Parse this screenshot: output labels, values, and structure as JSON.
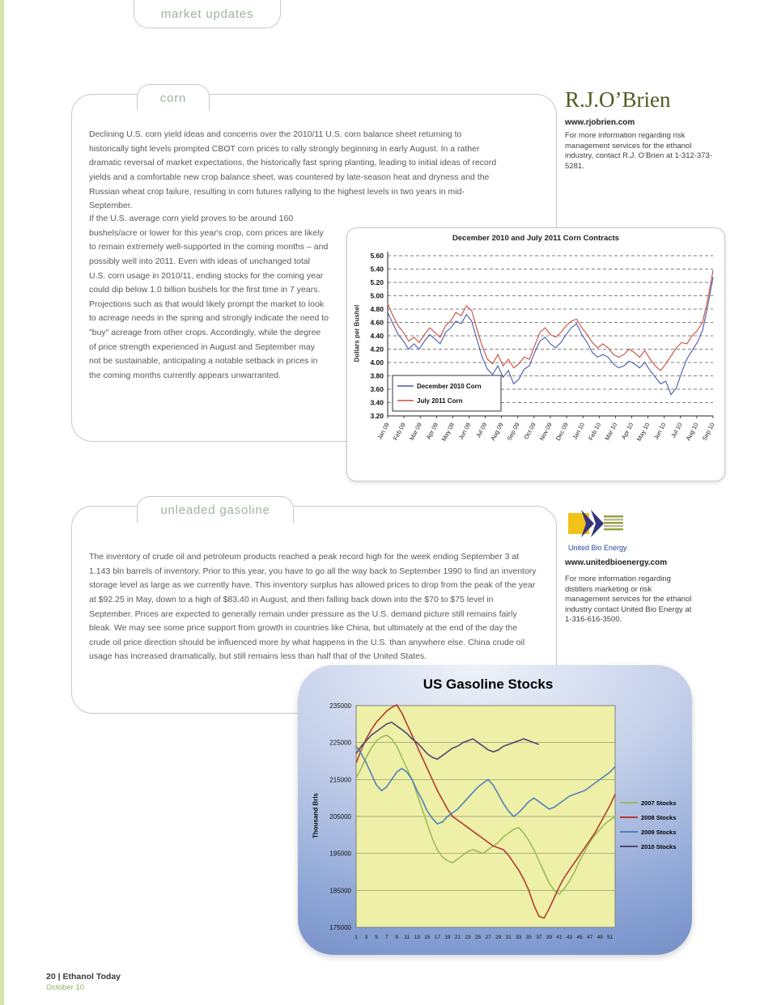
{
  "page": {
    "section_tab": "market updates",
    "footer": {
      "page_info": "20 | Ethanol Today",
      "issue": "October 10"
    }
  },
  "corn": {
    "tab": "corn",
    "para1": "Declining U.S. corn yield ideas and concerns over the 2010/11 U.S. corn balance sheet returning to historically tight levels prompted CBOT corn prices to rally strongly beginning in early August. In a rather dramatic reversal of market expectations, the historically fast spring planting, leading to initial ideas of record yields and a comfortable new crop balance sheet, was countered by late-season heat and dryness and the Russian wheat crop failure, resulting in corn futures rallying to the highest levels in two years in mid-September.",
    "para2": "If the U.S. average corn yield proves to be around 160 bushels/acre or lower for this year's crop, corn prices are likely to remain extremely well-supported in the coming months – and possibly well into 2011. Even with ideas of unchanged total U.S. corn usage in 2010/11, ending stocks for the coming year could dip below 1.0 billion bushels for the first time in 7 years. Projections such as that would likely prompt the market to look to acreage needs in the spring and strongly indicate the need to \"buy\" acreage from other crops. Accordingly, while the degree of price strength experienced in August and September may not be sustainable, anticipating a notable setback in prices in the coming months currently appears unwarranted."
  },
  "rjobrien": {
    "logo": "R.J.O’Brien",
    "website": "www.rjobrien.com",
    "blurb": "For more information regarding risk management services for the ethanol industry, contact R.J. O’Brien at 1-312-373-5281."
  },
  "gasoline": {
    "tab": "unleaded gasoline",
    "para": "The inventory of crude oil and petroleum products reached a peak record high for the week ending September 3 at 1.143 bln barrels of inventory. Prior to this year, you have to go all the way back to September 1990 to find an inventory storage level as large as we currently have. This inventory surplus has allowed prices to drop from the peak of the year at $92.25 in May, down to a high of $83.40 in August, and then falling back down into the $70 to $75 level in September. Prices are expected to generally remain under pressure as the U.S. demand picture still remains fairly bleak. We may see some price support from growth in countries like China, but ultimately at the end of the day the crude oil price direction should be influenced more by what happens in the U.S. than anywhere else. China crude oil usage has increased dramatically, but still remains less than half that of the United States."
  },
  "ube": {
    "logo_text": "United Bio Energy",
    "website": "www.unitedbioenergy.com",
    "blurb": "For more information regarding distillers marketing or risk management services for the ethanol industry contact United Bio Energy at 1-316-616-3500."
  },
  "colors": {
    "tab_text": "#9fb3a0",
    "rjo_logo_green": "#4e5c20",
    "footer_issue_green": "#8fae62",
    "ube_blue": "#27489e"
  },
  "chart_data": [
    {
      "id": "corn",
      "type": "line",
      "title": "December 2010 and July 2011 Corn Contracts",
      "ylabel": "Dollars per Bushel",
      "ylim": [
        3.2,
        5.6
      ],
      "ytick_step": 0.2,
      "grid": "dashed-horizontal",
      "legend_position": "bottom-left-inside",
      "x_categories": [
        "Jan 09",
        "Feb 09",
        "Mar 09",
        "Apr 09",
        "May 09",
        "Jun 09",
        "Jul 09",
        "Aug 09",
        "Sep 09",
        "Oct 09",
        "Nov 09",
        "Dec 09",
        "Jan 10",
        "Feb 10",
        "Mar 10",
        "Apr 10",
        "May 10",
        "Jun 10",
        "Jul 10",
        "Aug 10",
        "Sep 10"
      ],
      "series": [
        {
          "name": "December 2010 Corn",
          "color": "#4959ae",
          "values": [
            4.75,
            4.58,
            4.42,
            4.32,
            4.2,
            4.28,
            4.2,
            4.32,
            4.42,
            4.35,
            4.28,
            4.45,
            4.52,
            4.62,
            4.58,
            4.72,
            4.62,
            4.35,
            4.08,
            3.9,
            3.82,
            3.95,
            3.78,
            3.88,
            3.68,
            3.75,
            3.9,
            3.95,
            4.15,
            4.32,
            4.38,
            4.28,
            4.22,
            4.3,
            4.42,
            4.52,
            4.58,
            4.42,
            4.3,
            4.15,
            4.08,
            4.12,
            4.08,
            3.98,
            3.92,
            3.95,
            4.02,
            3.98,
            3.92,
            4.0,
            3.88,
            3.78,
            3.68,
            3.72,
            3.52,
            3.62,
            3.85,
            4.05,
            4.18,
            4.3,
            4.48,
            4.85,
            5.28
          ]
        },
        {
          "name": "July 2011 Corn",
          "color": "#cc4b3a",
          "values": [
            4.88,
            4.7,
            4.55,
            4.45,
            4.32,
            4.38,
            4.3,
            4.42,
            4.52,
            4.45,
            4.38,
            4.55,
            4.62,
            4.75,
            4.7,
            4.85,
            4.78,
            4.5,
            4.25,
            4.05,
            3.98,
            4.12,
            3.95,
            4.05,
            3.92,
            3.98,
            4.08,
            4.05,
            4.25,
            4.45,
            4.52,
            4.42,
            4.38,
            4.45,
            4.55,
            4.62,
            4.65,
            4.52,
            4.42,
            4.3,
            4.22,
            4.28,
            4.22,
            4.12,
            4.08,
            4.12,
            4.2,
            4.15,
            4.08,
            4.18,
            4.05,
            3.95,
            3.88,
            3.98,
            4.1,
            4.22,
            4.3,
            4.28,
            4.4,
            4.48,
            4.6,
            4.95,
            5.38
          ]
        }
      ]
    },
    {
      "id": "gasoline",
      "type": "line",
      "title": "US Gasoline Stocks",
      "ylabel": "Thousand  Brls",
      "ylim": [
        175000,
        235000
      ],
      "ytick_step": 10000,
      "plot_bg": "#edf0a6",
      "grid": "solid-horizontal",
      "legend_position": "right",
      "x_range": [
        1,
        52
      ],
      "x_ticks": [
        1,
        3,
        5,
        7,
        9,
        11,
        13,
        15,
        17,
        19,
        21,
        23,
        25,
        27,
        29,
        31,
        33,
        35,
        37,
        39,
        41,
        43,
        45,
        47,
        49,
        51
      ],
      "series": [
        {
          "name": "2007 Stocks",
          "color": "#9bbb59",
          "values": [
            215500,
            218000,
            221000,
            223500,
            225500,
            226500,
            227000,
            226000,
            224000,
            221000,
            218000,
            215000,
            211000,
            207000,
            203000,
            199000,
            196000,
            194000,
            193000,
            192500,
            193500,
            194500,
            195500,
            196000,
            195500,
            195000,
            196000,
            197000,
            198000,
            199500,
            200500,
            201500,
            202000,
            200500,
            198500,
            196000,
            193000,
            190000,
            187000,
            185000,
            184000,
            185500,
            187500,
            190000,
            193000,
            195500,
            198000,
            200000,
            201500,
            203000,
            204000,
            205000
          ]
        },
        {
          "name": "2008 Stocks",
          "color": "#b03a33",
          "values": [
            219500,
            223000,
            226000,
            228500,
            230500,
            232000,
            233500,
            234500,
            235200,
            233000,
            230000,
            227000,
            224000,
            221000,
            218000,
            215000,
            212000,
            209500,
            207000,
            205000,
            204000,
            203000,
            202000,
            201000,
            200000,
            199000,
            198000,
            197000,
            196500,
            196000,
            194500,
            192500,
            190500,
            188000,
            185000,
            181000,
            178000,
            177500,
            180000,
            183000,
            186000,
            188500,
            190500,
            192500,
            194500,
            196500,
            198500,
            200500,
            203000,
            205500,
            208000,
            211000
          ]
        },
        {
          "name": "2009 Stocks",
          "color": "#4f81bd",
          "values": [
            224000,
            222000,
            219500,
            216500,
            213500,
            212000,
            213000,
            215000,
            217000,
            218000,
            217000,
            215000,
            212000,
            209500,
            206500,
            204500,
            203000,
            203500,
            205000,
            206000,
            207000,
            208500,
            210000,
            211500,
            213000,
            214000,
            215000,
            213500,
            211000,
            208500,
            206500,
            205000,
            206000,
            207500,
            209000,
            210000,
            209000,
            208000,
            207000,
            207500,
            208500,
            209500,
            210500,
            211000,
            211500,
            212000,
            213000,
            214000,
            215000,
            216000,
            217000,
            218500
          ]
        },
        {
          "name": "2010 Stocks",
          "color": "#4f4672",
          "values": [
            222000,
            224000,
            225500,
            227000,
            228000,
            229000,
            230000,
            230500,
            229500,
            228500,
            227500,
            226000,
            225000,
            223500,
            222000,
            221000,
            220500,
            221500,
            222500,
            223500,
            224000,
            225000,
            225500,
            226000,
            225000,
            224000,
            223000,
            222500,
            223000,
            224000,
            224500,
            225000,
            225500,
            226000,
            225500,
            225000,
            224500
          ]
        }
      ]
    }
  ]
}
